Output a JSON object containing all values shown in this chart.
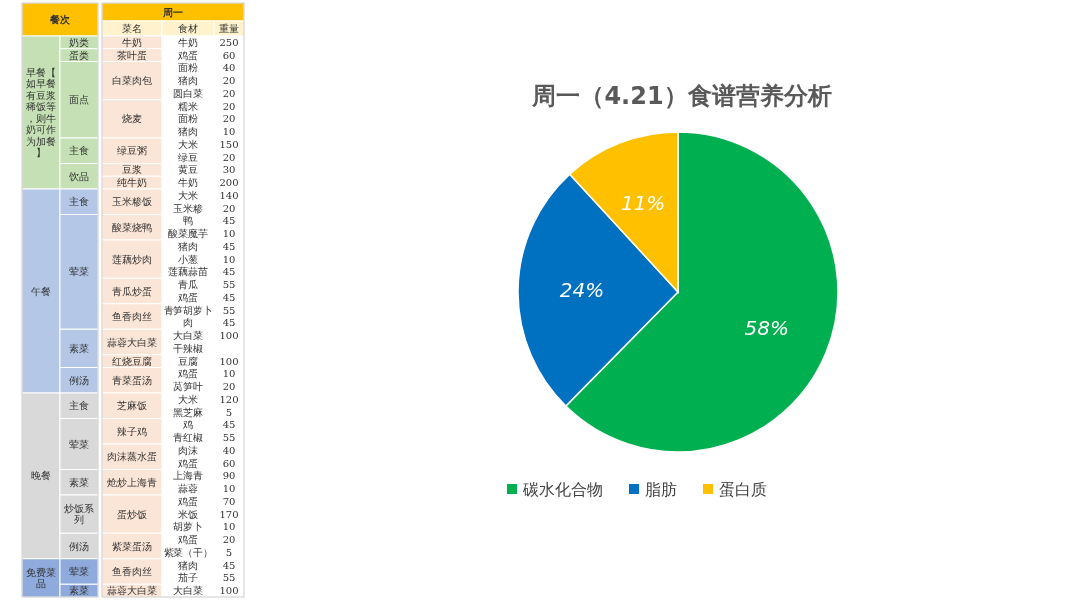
{
  "chart_data": [
    {
      "type": "other",
      "annotations": [
        "餐次",
        "周一"
      ],
      "categories": [
        "菜名",
        "食材",
        "重量"
      ],
      "colors": [
        "#fff2cc",
        "#fff2cc",
        "#fff2cc",
        "#ffc000",
        "#fbe5d6",
        "#c5e0b4",
        "#b4c7e7",
        "#d9d9d9",
        "#8faadc"
      ],
      "cell_labels": [
        [
          "早餐【如早餐有豆浆稀饭等，则牛奶可作为加餐】",
          "奶类",
          "牛奶",
          "牛奶",
          "250"
        ],
        [
          null,
          "蛋类",
          "茶叶蛋",
          "鸡蛋",
          "60"
        ],
        [
          null,
          "面点",
          "白菜肉包",
          "面粉",
          "40"
        ],
        [
          null,
          null,
          null,
          "猪肉",
          "20"
        ],
        [
          null,
          null,
          null,
          "圆白菜",
          "20"
        ],
        [
          null,
          null,
          "烧麦",
          "糯米",
          "20"
        ],
        [
          null,
          null,
          null,
          "面粉",
          "20"
        ],
        [
          null,
          null,
          null,
          "猪肉",
          "10"
        ],
        [
          null,
          "主食",
          "绿豆粥",
          "大米",
          "150"
        ],
        [
          null,
          null,
          null,
          "绿豆",
          "20"
        ],
        [
          null,
          "饮品",
          "豆浆",
          "黄豆",
          "30"
        ],
        [
          null,
          null,
          "纯牛奶",
          "牛奶",
          "200"
        ],
        [
          "午餐",
          "主食",
          "玉米糁饭",
          "大米",
          "140"
        ],
        [
          null,
          null,
          null,
          "玉米糁",
          "20"
        ],
        [
          null,
          "荤菜",
          "酸菜烧鸭",
          "鸭",
          "45"
        ],
        [
          null,
          null,
          null,
          "酸菜魔芋",
          "10"
        ],
        [
          null,
          null,
          "莲藕炒肉",
          "猪肉",
          "45"
        ],
        [
          null,
          null,
          null,
          "小葱",
          "10"
        ],
        [
          null,
          null,
          null,
          "莲藕蒜苗",
          "45"
        ],
        [
          null,
          null,
          "青瓜炒蛋",
          "青瓜",
          "55"
        ],
        [
          null,
          null,
          null,
          "鸡蛋",
          "45"
        ],
        [
          null,
          null,
          "鱼香肉丝",
          "青笋胡萝卜",
          "55"
        ],
        [
          null,
          null,
          null,
          "肉",
          "45"
        ],
        [
          null,
          "素菜",
          "蒜蓉大白菜",
          "大白菜",
          "100"
        ],
        [
          null,
          null,
          null,
          "干辣椒"
        ],
        [
          null,
          null,
          "红烧豆腐",
          "豆腐",
          "100"
        ],
        [
          null,
          "例汤",
          "青菜蛋汤",
          "鸡蛋",
          "10"
        ],
        [
          null,
          null,
          null,
          "莴笋叶",
          "20"
        ],
        [
          "晚餐",
          "主食",
          "芝麻饭",
          "大米",
          "120"
        ],
        [
          null,
          null,
          null,
          "黑芝麻",
          "5"
        ],
        [
          null,
          "荤菜",
          "辣子鸡",
          "鸡",
          "45"
        ],
        [
          null,
          null,
          null,
          "青红椒",
          "55"
        ],
        [
          null,
          null,
          "肉沫蒸水蛋",
          "肉沫",
          "40"
        ],
        [
          null,
          null,
          null,
          "鸡蛋",
          "60"
        ],
        [
          null,
          "素菜",
          "炝炒上海青",
          "上海青",
          "90"
        ],
        [
          null,
          null,
          null,
          "蒜蓉",
          "10"
        ],
        [
          null,
          "炒饭系列",
          "蛋炒饭",
          "鸡蛋",
          "70"
        ],
        [
          null,
          null,
          null,
          "米饭",
          "170"
        ],
        [
          null,
          null,
          null,
          "胡萝卜",
          "10"
        ],
        [
          null,
          "例汤",
          "紫菜蛋汤",
          "鸡蛋",
          "20"
        ],
        [
          null,
          null,
          null,
          "紫菜（干）",
          "5"
        ],
        [
          "免费菜品",
          "荤菜",
          "鱼香肉丝",
          "猪肉",
          "45"
        ],
        [
          null,
          null,
          null,
          "茄子",
          "55"
        ],
        [
          null,
          "素菜",
          "蒜蓉大白菜",
          "大白菜",
          "100"
        ]
      ]
    },
    {
      "type": "pie",
      "title": "周一（4.21）食谱营养分析",
      "categories": [
        "碳水化合物",
        "脂肪",
        "蛋白质"
      ],
      "values": [
        58,
        24,
        11
      ],
      "value_labels": [
        "58%",
        "24%",
        "11%"
      ],
      "colors": [
        "#00b050",
        "#0070c0",
        "#ffc000"
      ],
      "legend": "bottom"
    }
  ]
}
